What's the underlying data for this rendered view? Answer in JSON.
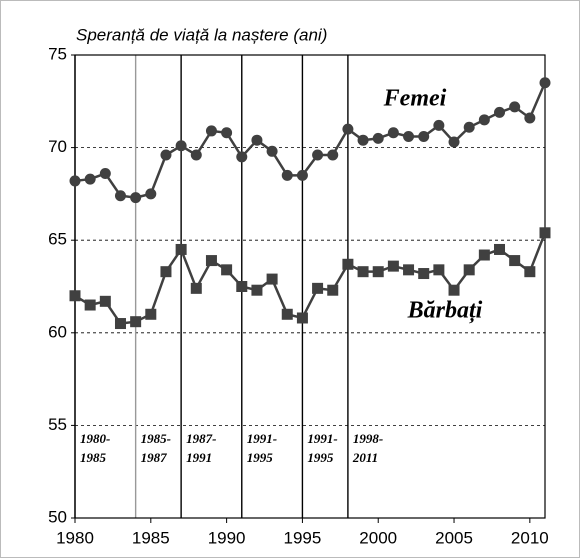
{
  "chart_data": {
    "type": "line",
    "title": "Speranță de viață la naștere (ani)",
    "x": [
      1980,
      1981,
      1982,
      1983,
      1984,
      1985,
      1986,
      1987,
      1988,
      1989,
      1990,
      1991,
      1992,
      1993,
      1994,
      1995,
      1996,
      1997,
      1998,
      1999,
      2000,
      2001,
      2002,
      2003,
      2004,
      2005,
      2006,
      2007,
      2008,
      2009,
      2010,
      2011
    ],
    "series": [
      {
        "name": "Femei",
        "color": "#404040",
        "marker": "circle",
        "values": [
          68.2,
          68.3,
          68.6,
          67.4,
          67.3,
          67.5,
          69.6,
          70.1,
          69.6,
          70.9,
          70.8,
          69.5,
          70.4,
          69.8,
          68.5,
          68.5,
          69.6,
          69.6,
          71.0,
          70.4,
          70.5,
          70.8,
          70.6,
          70.6,
          71.2,
          70.3,
          71.1,
          71.5,
          71.9,
          72.2,
          71.6,
          73.5
        ]
      },
      {
        "name": "Bărbați",
        "color": "#404040",
        "marker": "square",
        "values": [
          62.0,
          61.5,
          61.7,
          60.5,
          60.6,
          61.0,
          63.3,
          64.5,
          62.4,
          63.9,
          63.4,
          62.5,
          62.3,
          62.9,
          61.0,
          60.8,
          62.4,
          62.3,
          63.7,
          63.3,
          63.3,
          63.6,
          63.4,
          63.2,
          63.4,
          62.3,
          63.4,
          64.2,
          64.5,
          63.9,
          63.3,
          65.4
        ]
      }
    ],
    "xlim": [
      1980,
      2011
    ],
    "xticks": [
      1980,
      1985,
      1990,
      1995,
      2000,
      2005,
      2010
    ],
    "ylim": [
      50,
      75
    ],
    "yticks": [
      50,
      55,
      60,
      65,
      70,
      75
    ],
    "grid": true,
    "periods": [
      {
        "x": 1980,
        "color": "#000000",
        "label": [
          "1980-",
          "1985"
        ]
      },
      {
        "x": 1984,
        "color": "#999999",
        "label": [
          "1985-",
          "1987"
        ]
      },
      {
        "x": 1987,
        "color": "#000000",
        "label": [
          "1987-",
          "1991"
        ]
      },
      {
        "x": 1991,
        "color": "#000000",
        "label": [
          "1991-",
          "1995"
        ]
      },
      {
        "x": 1995,
        "color": "#000000",
        "label": [
          "1991-",
          "1995"
        ]
      },
      {
        "x": 1998,
        "color": "#000000",
        "label": [
          "1998-",
          "2011"
        ]
      }
    ]
  }
}
